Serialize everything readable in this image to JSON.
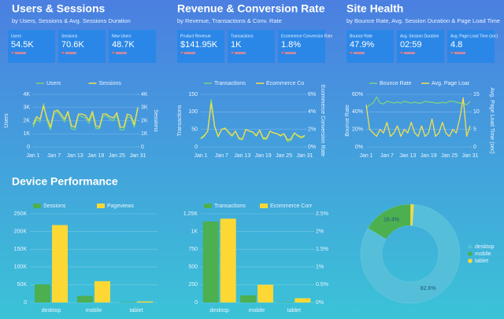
{
  "sections": [
    {
      "title": "Users & Sessions",
      "subtitle": "by Users, Sessions & Avg. Sessions Duration",
      "cards": [
        {
          "label": "Users",
          "value": "54.5K"
        },
        {
          "label": "Sessions",
          "value": "70.6K"
        },
        {
          "label": "New Users",
          "value": "48.7K"
        }
      ]
    },
    {
      "title": "Revenue & Conversion Rate",
      "subtitle": "by Revenue, Transactions & Conv. Rate",
      "cards": [
        {
          "label": "Product Revenue",
          "value": "$141.95K"
        },
        {
          "label": "Transactions",
          "value": "1K"
        },
        {
          "label": "Ecommerce Conversion Rate",
          "value": "1.8%"
        }
      ]
    },
    {
      "title": "Site Health",
      "subtitle": "by Bounce Rate, Avg. Session Duration & Page Load Time",
      "cards": [
        {
          "label": "Bounce Rate",
          "value": "47.9%"
        },
        {
          "label": "Avg. Session Duration",
          "value": "02:59"
        },
        {
          "label": "Avg. Page Load Time (sec)",
          "value": "4.8"
        }
      ]
    }
  ],
  "device_title": "Device Performance",
  "chart_data": [
    {
      "type": "line",
      "categories": [
        "Jan 1",
        null,
        null,
        null,
        null,
        null,
        "Jan 7",
        null,
        null,
        null,
        null,
        null,
        "Jan 13",
        null,
        null,
        null,
        null,
        null,
        "Jan 19",
        null,
        null,
        null,
        null,
        null,
        "Jan 25",
        null,
        null,
        null,
        null,
        null,
        "Jan 31"
      ],
      "ylabel": "Users",
      "y2label": "Sessions",
      "grid": true,
      "ylim": [
        0,
        4000
      ],
      "yticks": [
        0,
        {
          "value": 1000,
          "label": "1K"
        },
        {
          "value": 2000,
          "label": "2K"
        },
        {
          "value": 3000,
          "label": "3K"
        },
        {
          "value": 4000,
          "label": "4K"
        }
      ],
      "y2lim": [
        0,
        4000
      ],
      "y2ticks": [
        0,
        {
          "value": 1000,
          "label": "1K"
        },
        {
          "value": 2000,
          "label": "2K"
        },
        {
          "value": 3000,
          "label": "3K"
        },
        {
          "value": 4000,
          "label": "4K"
        }
      ],
      "series": [
        {
          "name": "Users",
          "color": "#7ed07f",
          "values": [
            1500,
            2100,
            1900,
            3300,
            2000,
            1300,
            2500,
            2700,
            2300,
            1900,
            2600,
            1400,
            1300,
            2400,
            2300,
            2200,
            1800,
            2500,
            1400,
            1400,
            2300,
            2400,
            2100,
            2000,
            2400,
            1300,
            1300,
            2300,
            2200,
            1500,
            2900
          ]
        },
        {
          "name": "Sessions",
          "color": "#f4e04d",
          "axis": "y2",
          "values": [
            1700,
            2300,
            2100,
            3100,
            2200,
            1500,
            2700,
            2800,
            2500,
            2100,
            2700,
            1600,
            1500,
            2500,
            2500,
            2400,
            2000,
            2700,
            1600,
            1500,
            2500,
            2500,
            2300,
            2200,
            2600,
            1500,
            1500,
            2500,
            2400,
            1700,
            3000
          ]
        }
      ]
    },
    {
      "type": "line",
      "categories": [
        "Jan 1",
        null,
        null,
        null,
        null,
        null,
        "Jan 7",
        null,
        null,
        null,
        null,
        null,
        "Jan 13",
        null,
        null,
        null,
        null,
        null,
        "Jan 19",
        null,
        null,
        null,
        null,
        null,
        "Jan 25",
        null,
        null,
        null,
        null,
        null,
        "Jan 31"
      ],
      "ylabel": "Transactions",
      "y2label": "Ecommerce Conversion Rate",
      "grid": true,
      "ylim": [
        0,
        150
      ],
      "yticks": [
        0,
        50,
        100,
        150
      ],
      "y2lim": [
        0,
        6
      ],
      "y2ticks": [
        {
          "value": 0,
          "label": "0%"
        },
        {
          "value": 2,
          "label": "2%"
        },
        {
          "value": 4,
          "label": "4%"
        },
        {
          "value": 6,
          "label": "6%"
        }
      ],
      "series": [
        {
          "name": "Transactions",
          "color": "#7ed07f",
          "values": [
            22,
            30,
            45,
            135,
            60,
            28,
            50,
            55,
            40,
            30,
            45,
            22,
            20,
            50,
            45,
            42,
            30,
            48,
            22,
            22,
            45,
            40,
            38,
            30,
            38,
            15,
            18,
            40,
            30,
            25,
            30
          ]
        },
        {
          "name": "Ecommerce Conversion Rate",
          "color": "#f4e04d",
          "axis": "y2",
          "values": [
            1.0,
            1.3,
            1.8,
            5.0,
            2.3,
            1.2,
            2.0,
            2.1,
            1.7,
            1.3,
            1.8,
            1.0,
            0.9,
            2.0,
            1.8,
            1.7,
            1.3,
            1.9,
            1.0,
            1.0,
            1.8,
            1.6,
            1.5,
            1.3,
            1.5,
            0.8,
            0.9,
            1.6,
            1.3,
            1.1,
            1.3
          ]
        }
      ]
    },
    {
      "type": "line",
      "categories": [
        "Jan 1",
        null,
        null,
        null,
        null,
        null,
        "Jan 7",
        null,
        null,
        null,
        null,
        null,
        "Jan 13",
        null,
        null,
        null,
        null,
        null,
        "Jan 19",
        null,
        null,
        null,
        null,
        null,
        "Jan 25",
        null,
        null,
        null,
        null,
        null,
        "Jan 31"
      ],
      "ylabel": "Bounce Rate",
      "y2label": "Avg. Page Load Time (sec)",
      "grid": true,
      "ylim": [
        0,
        60
      ],
      "yticks": [
        {
          "value": 0,
          "label": "0%"
        },
        {
          "value": 20,
          "label": "20%"
        },
        {
          "value": 40,
          "label": "40%"
        },
        {
          "value": 60,
          "label": "60%"
        }
      ],
      "y2lim": [
        0,
        15
      ],
      "y2ticks": [
        0,
        5,
        10,
        15
      ],
      "series": [
        {
          "name": "Bounce Rate",
          "color": "#7ed07f",
          "values": [
            44,
            48,
            50,
            57,
            50,
            49,
            52,
            51,
            50,
            51,
            50,
            52,
            51,
            50,
            51,
            50,
            50,
            52,
            51,
            51,
            50,
            50,
            51,
            50,
            52,
            52,
            51,
            50,
            50,
            48,
            52
          ]
        },
        {
          "name": "Avg. Page Load Time (sec)",
          "color": "#f4e04d",
          "axis": "y2",
          "values": [
            12,
            5,
            4,
            3,
            5,
            4,
            7,
            3,
            4,
            6,
            3,
            5,
            4,
            7,
            4,
            3,
            6,
            3,
            4,
            8,
            3,
            4,
            7,
            4,
            3,
            5,
            4,
            8,
            14,
            3,
            6
          ]
        }
      ]
    },
    {
      "type": "bar",
      "categories": [
        "desktop",
        "mobile",
        "tablet"
      ],
      "grid": true,
      "ylim": [
        0,
        250000
      ],
      "yticks": [
        0,
        {
          "value": 50000,
          "label": "50K"
        },
        {
          "value": 100000,
          "label": "100K"
        },
        {
          "value": 150000,
          "label": "150K"
        },
        {
          "value": 200000,
          "label": "200K"
        },
        {
          "value": 250000,
          "label": "250K"
        }
      ],
      "series": [
        {
          "name": "Sessions",
          "color": "#4caf50",
          "values": [
            51000,
            18500,
            1100
          ]
        },
        {
          "name": "Pageviews",
          "color": "#fdd835",
          "values": [
            218000,
            60000,
            3000
          ]
        }
      ]
    },
    {
      "type": "bar",
      "categories": [
        "desktop",
        "mobile",
        "tablet"
      ],
      "grid": true,
      "ylim": [
        0,
        1250
      ],
      "yticks": [
        0,
        250,
        500,
        750,
        {
          "value": 1000,
          "label": "1K"
        },
        {
          "value": 1250,
          "label": "1.25K"
        }
      ],
      "y2lim": [
        0,
        2.5
      ],
      "y2ticks": [
        {
          "value": 0,
          "label": "0%"
        },
        {
          "value": 0.5,
          "label": "0.5%"
        },
        {
          "value": 1,
          "label": "1%"
        },
        {
          "value": 1.5,
          "label": "1.5%"
        },
        {
          "value": 2,
          "label": "2%"
        },
        {
          "value": 2.5,
          "label": "2.5%"
        }
      ],
      "series": [
        {
          "name": "Transactions",
          "color": "#4caf50",
          "values": [
            1140,
            100,
            5
          ]
        },
        {
          "name": "Ecommerce Conversion Rate",
          "color": "#fdd835",
          "axis": "y2",
          "values": [
            2.36,
            0.5,
            0.12
          ]
        }
      ]
    },
    {
      "type": "pie",
      "donut": true,
      "categories": [
        "desktop",
        "mobile",
        "tablet"
      ],
      "values": [
        82.6,
        16.4,
        1.0
      ],
      "value_labels": [
        "82.6%",
        "16.4%",
        null
      ],
      "colors": [
        "#55bfd9",
        "#4caf50",
        "#fdd835"
      ]
    }
  ]
}
